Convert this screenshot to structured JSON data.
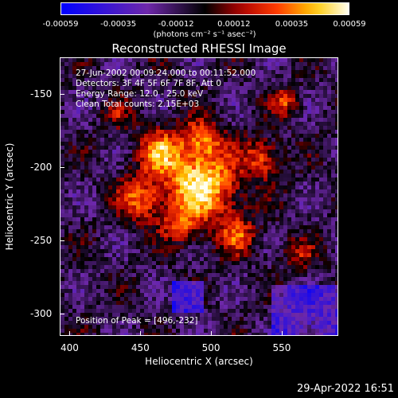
{
  "colorbar": {
    "tick_labels": [
      "-0.00059",
      "-0.00035",
      "-0.00012",
      "0.00012",
      "0.00035",
      "0.00059"
    ],
    "units": "(photons cm⁻² s⁻¹ asec⁻²)"
  },
  "title": "Reconstructed RHESSI Image",
  "info": {
    "line1": "27-Jun-2002 00:09:24.000 to 00:11:52.000",
    "line2": "Detectors: 3F 4F 5F 6F 7F 8F, Att 0",
    "line3": "Energy Range: 12.0 - 25.0 keV",
    "line4": "Clean     Total counts: 2.15E+03",
    "peak": "Position of Peak = [496,-232]"
  },
  "axes": {
    "xlabel": "Heliocentric X (arcsec)",
    "ylabel": "Heliocentric Y (arcsec)",
    "xticks": [
      "400",
      "450",
      "500",
      "550"
    ],
    "yticks": [
      "-150",
      "-200",
      "-250",
      "-300"
    ],
    "xlim": [
      393,
      590
    ],
    "ylim": [
      -315,
      -125
    ]
  },
  "timestamp": "29-Apr-2022 16:51",
  "colors": {
    "low": "#0000ff",
    "mid": "#000000",
    "high": "#ffffff",
    "accent": "#ff0000"
  }
}
